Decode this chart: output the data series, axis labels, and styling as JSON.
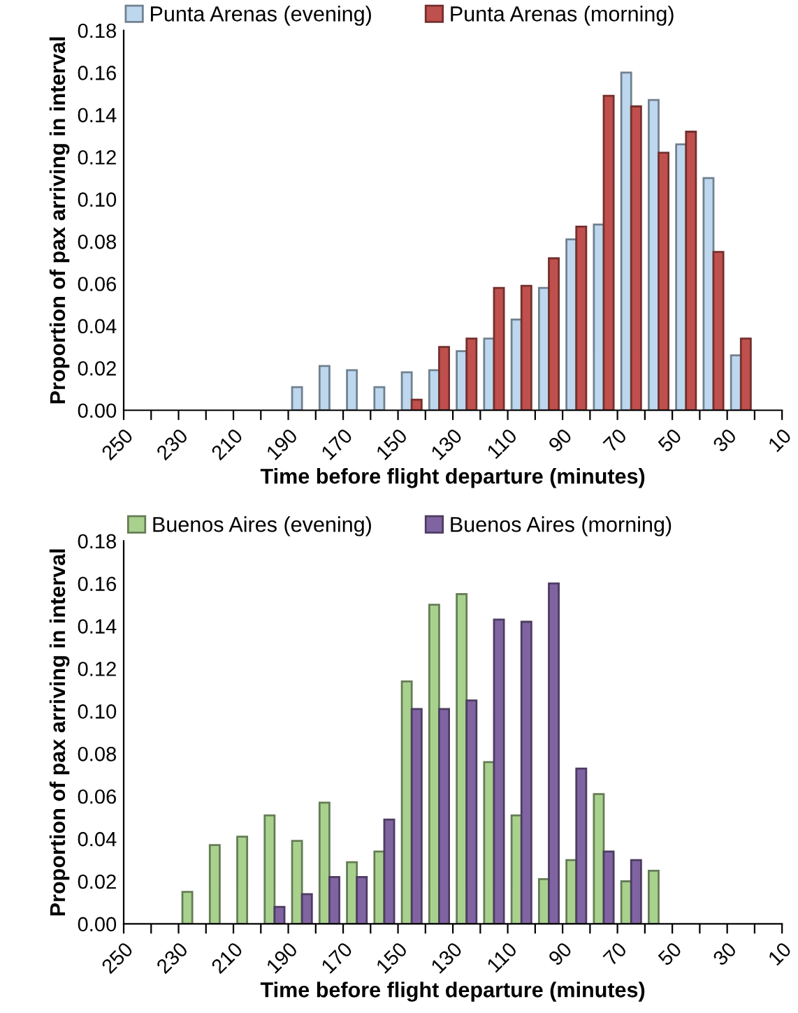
{
  "chart_data": [
    {
      "type": "bar",
      "xlabel": "Time before flight departure (minutes)",
      "ylabel": "Proportion of pax arriving in interval",
      "legend": "top",
      "series": [
        {
          "name": "Punta Arenas (evening)",
          "color": "#bdd7ee",
          "x": [
            185,
            175,
            165,
            155,
            145,
            135,
            125,
            115,
            105,
            95,
            85,
            75,
            65,
            55,
            45,
            35,
            25
          ],
          "values": [
            0.011,
            0.021,
            0.019,
            0.011,
            0.018,
            0.019,
            0.028,
            0.034,
            0.043,
            0.058,
            0.081,
            0.088,
            0.16,
            0.147,
            0.126,
            0.11,
            0.026
          ]
        },
        {
          "name": "Punta Arenas (morning)",
          "color": "#c0504d",
          "x": [
            145,
            135,
            125,
            115,
            105,
            95,
            85,
            75,
            65,
            55,
            45,
            35,
            25
          ],
          "values": [
            0.005,
            0.03,
            0.034,
            0.058,
            0.059,
            0.072,
            0.087,
            0.149,
            0.144,
            0.122,
            0.132,
            0.075,
            0.034
          ]
        }
      ],
      "xlim": [
        250,
        10
      ],
      "xticks": [
        250,
        {
          "value": 240,
          "label": null
        },
        230,
        {
          "value": 220,
          "label": null
        },
        210,
        {
          "value": 200,
          "label": null
        },
        190,
        {
          "value": 180,
          "label": null
        },
        170,
        {
          "value": 160,
          "label": null
        },
        150,
        {
          "value": 140,
          "label": null
        },
        130,
        {
          "value": 120,
          "label": null
        },
        110,
        {
          "value": 100,
          "label": null
        },
        90,
        {
          "value": 80,
          "label": null
        },
        70,
        {
          "value": 60,
          "label": null
        },
        50,
        {
          "value": 40,
          "label": null
        },
        30,
        {
          "value": 20,
          "label": null
        },
        10
      ],
      "ylim": [
        0,
        0.18
      ],
      "yticks": [
        {
          "value": 0,
          "label": "0.00"
        },
        {
          "value": 0.02,
          "label": "0.02"
        },
        {
          "value": 0.04,
          "label": "0.04"
        },
        {
          "value": 0.06,
          "label": "0.06"
        },
        {
          "value": 0.08,
          "label": "0.08"
        },
        {
          "value": 0.1,
          "label": "0.10"
        },
        {
          "value": 0.12,
          "label": "0.12"
        },
        {
          "value": 0.14,
          "label": "0.14"
        },
        {
          "value": 0.16,
          "label": "0.16"
        },
        {
          "value": 0.18,
          "label": "0.18"
        }
      ]
    },
    {
      "type": "bar",
      "xlabel": "Time before flight departure (minutes)",
      "ylabel": "Proportion of pax arriving in interval",
      "legend": "top",
      "series": [
        {
          "name": "Buenos Aires (evening)",
          "color": "#a9d18e",
          "x": [
            225,
            215,
            205,
            195,
            185,
            175,
            165,
            155,
            145,
            135,
            125,
            115,
            105,
            95,
            85,
            75,
            65,
            55
          ],
          "values": [
            0.015,
            0.037,
            0.041,
            0.051,
            0.039,
            0.057,
            0.029,
            0.034,
            0.114,
            0.15,
            0.155,
            0.076,
            0.051,
            0.021,
            0.03,
            0.061,
            0.02,
            0.025
          ]
        },
        {
          "name": "Buenos Aires (morning)",
          "color": "#8064a2",
          "x": [
            195,
            185,
            175,
            165,
            155,
            145,
            135,
            125,
            115,
            105,
            95,
            85,
            75,
            65
          ],
          "values": [
            0.008,
            0.014,
            0.022,
            0.022,
            0.049,
            0.101,
            0.101,
            0.105,
            0.143,
            0.142,
            0.16,
            0.073,
            0.034,
            0.03
          ]
        }
      ],
      "xlim": [
        250,
        10
      ],
      "xticks": [
        250,
        {
          "value": 240,
          "label": null
        },
        230,
        {
          "value": 220,
          "label": null
        },
        210,
        {
          "value": 200,
          "label": null
        },
        190,
        {
          "value": 180,
          "label": null
        },
        170,
        {
          "value": 160,
          "label": null
        },
        150,
        {
          "value": 140,
          "label": null
        },
        130,
        {
          "value": 120,
          "label": null
        },
        110,
        {
          "value": 100,
          "label": null
        },
        90,
        {
          "value": 80,
          "label": null
        },
        70,
        {
          "value": 60,
          "label": null
        },
        50,
        {
          "value": 40,
          "label": null
        },
        30,
        {
          "value": 20,
          "label": null
        },
        10
      ],
      "ylim": [
        0,
        0.18
      ],
      "yticks": [
        {
          "value": 0,
          "label": "0.00"
        },
        {
          "value": 0.02,
          "label": "0.02"
        },
        {
          "value": 0.04,
          "label": "0.04"
        },
        {
          "value": 0.06,
          "label": "0.06"
        },
        {
          "value": 0.08,
          "label": "0.08"
        },
        {
          "value": 0.1,
          "label": "0.10"
        },
        {
          "value": 0.12,
          "label": "0.12"
        },
        {
          "value": 0.14,
          "label": "0.14"
        },
        {
          "value": 0.16,
          "label": "0.16"
        },
        {
          "value": 0.18,
          "label": "0.18"
        }
      ]
    }
  ]
}
